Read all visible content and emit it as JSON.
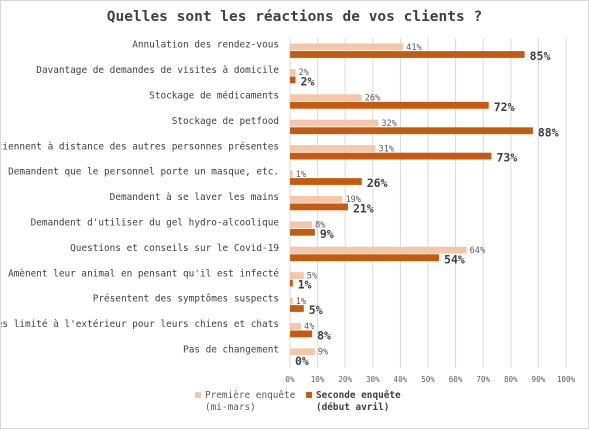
{
  "chart_data": {
    "type": "bar",
    "orientation": "horizontal",
    "title": "Quelles sont les réactions de vos clients ?",
    "categories": [
      "Annulation des rendez-vous",
      "Davantage de demandes de visites à domicile",
      "Stockage de médicaments",
      "Stockage de petfood",
      "Se tiennent à distance des autres personnes présentes",
      "Demandent que le personnel porte un masque, etc.",
      "Demandent à se laver les mains",
      "Demandent d'utiliser du gel hydro-alcoolique",
      "Questions et conseils sur le Covid-19",
      "Amènent leur animal en pensant qu'il est infecté",
      "Présentent des symptômes suspects",
      "Accès limité à l'extérieur pour leurs chiens et chats",
      "Pas de changement"
    ],
    "series": [
      {
        "name": "Première enquête (mi-mars)",
        "legend_lines": [
          "Première enquête",
          "(mi-mars)"
        ],
        "color": "#f4c7a9",
        "values": [
          41,
          2,
          26,
          32,
          31,
          1,
          19,
          8,
          64,
          5,
          1,
          4,
          9
        ],
        "labels": [
          "41%",
          "2%",
          "26%",
          "32%",
          "31%",
          "1%",
          "19%",
          "8%",
          "64%",
          "5%",
          "1%",
          "4%",
          "9%"
        ]
      },
      {
        "name": "Seconde enquête (début avril)",
        "legend_lines": [
          "Seconde enquête",
          "(début avril)"
        ],
        "color": "#c55a11",
        "values": [
          85,
          2,
          72,
          88,
          73,
          26,
          21,
          9,
          54,
          1,
          5,
          8,
          0
        ],
        "labels": [
          "85%",
          "2%",
          "72%",
          "88%",
          "73%",
          "26%",
          "21%",
          "9%",
          "54%",
          "1%",
          "5%",
          "8%",
          "0%"
        ]
      }
    ],
    "xlim": [
      0,
      100
    ],
    "x_ticks": [
      "0%",
      "10%",
      "20%",
      "30%",
      "40%",
      "50%",
      "60%",
      "70%",
      "80%",
      "90%",
      "100%"
    ],
    "grid": true,
    "legend_position": "bottom-left"
  }
}
